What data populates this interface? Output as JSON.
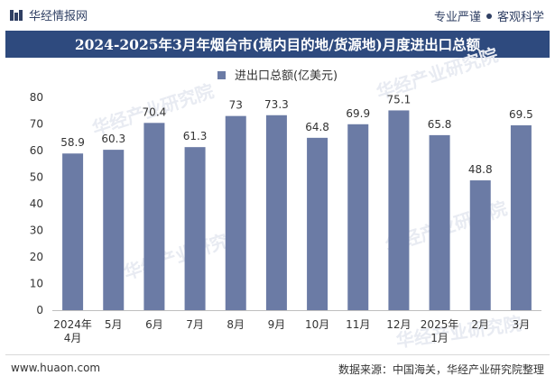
{
  "header": {
    "brand": "华经情报网",
    "slogan_left": "专业严谨",
    "slogan_right": "客观科学"
  },
  "chart_data": {
    "type": "bar",
    "title": "2024-2025年3月年烟台市(境内目的地/货源地)月度进出口总额",
    "legend": "进出口总额(亿美元)",
    "categories": [
      "2024年\n4月",
      "5月",
      "6月",
      "7月",
      "8月",
      "9月",
      "10月",
      "11月",
      "12月",
      "2025年\n1月",
      "2月",
      "3月"
    ],
    "series": [
      {
        "name": "进出口总额(亿美元)",
        "values": [
          58.9,
          60.3,
          70.4,
          61.3,
          73,
          73.3,
          64.8,
          69.9,
          75.1,
          65.8,
          48.8,
          69.5
        ]
      }
    ],
    "ylim": [
      0,
      80
    ],
    "yticks": [
      0,
      10,
      20,
      30,
      40,
      50,
      60,
      70,
      80
    ],
    "xlabel": "",
    "ylabel": "",
    "bar_color": "#6b7ba5"
  },
  "footer": {
    "website": "www.huaon.com",
    "source": "数据来源：中国海关，华经产业研究院整理"
  }
}
